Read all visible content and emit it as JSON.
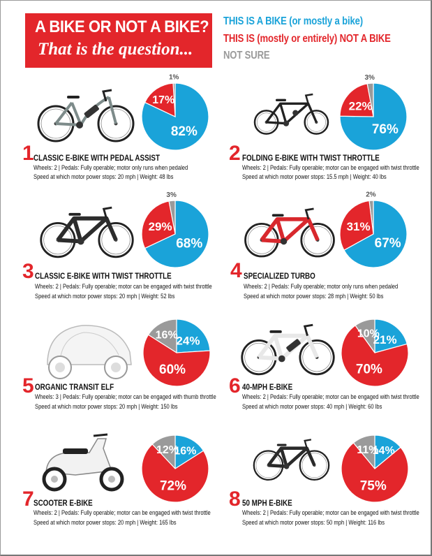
{
  "title": {
    "line1": "A BIKE OR NOT A BIKE?",
    "line2": "That is the question..."
  },
  "legend": [
    {
      "label": "THIS IS A BIKE (or mostly a bike)",
      "color": "#1aa3d9"
    },
    {
      "label": "THIS IS (mostly or entirely) NOT A BIKE",
      "color": "#e3262b"
    },
    {
      "label": "NOT SURE",
      "color": "#9a9a9a"
    }
  ],
  "colors": {
    "bike": "#1aa3d9",
    "not_bike": "#e3262b",
    "not_sure": "#9a9a9a"
  },
  "chart_data": [
    {
      "type": "pie",
      "number": "1",
      "name": "CLASSIC E-BIKE WITH PEDAL ASSIST",
      "desc1": "Wheels: 2 | Pedals: Fully operable; motor only runs when pedaled",
      "desc2": "Speed at which motor power stops: 20 mph | Weight: 48 lbs",
      "categories": [
        "Bike",
        "Not a bike",
        "Not sure"
      ],
      "values": [
        82,
        17,
        1
      ],
      "labels": [
        "82%",
        "17%",
        "1%"
      ]
    },
    {
      "type": "pie",
      "number": "2",
      "name": "FOLDING E-BIKE WITH TWIST THROTTLE",
      "desc1": "Wheels: 2 | Pedals: Fully operable; motor can be engaged with twist throttle",
      "desc2": "Speed at which motor power stops: 15.5 mph | Weight: 40 lbs",
      "categories": [
        "Bike",
        "Not a bike",
        "Not sure"
      ],
      "values": [
        76,
        22,
        3
      ],
      "labels": [
        "76%",
        "22%",
        "3%"
      ]
    },
    {
      "type": "pie",
      "number": "3",
      "name": "CLASSIC E-BIKE WITH TWIST THROTTLE",
      "desc1": "Wheels: 2 | Pedals: Fully operable; motor can be engaged with twist throttle",
      "desc2": "Speed at which motor power stops: 20 mph | Weight: 52 lbs",
      "categories": [
        "Bike",
        "Not a bike",
        "Not sure"
      ],
      "values": [
        68,
        29,
        3
      ],
      "labels": [
        "68%",
        "29%",
        "3%"
      ]
    },
    {
      "type": "pie",
      "number": "4",
      "name": "SPECIALIZED TURBO",
      "desc1": "Wheels: 2 | Pedals: Fully operable; motor only runs when pedaled",
      "desc2": "Speed at which motor power stops: 28 mph | Weight: 50 lbs",
      "categories": [
        "Bike",
        "Not a bike",
        "Not sure"
      ],
      "values": [
        67,
        31,
        2
      ],
      "labels": [
        "67%",
        "31%",
        "2%"
      ]
    },
    {
      "type": "pie",
      "number": "5",
      "name": "ORGANIC TRANSIT ELF",
      "desc1": "Wheels: 3 | Pedals: Fully operable; motor can be engaged with thumb throttle",
      "desc2": "Speed at which motor power stops: 20 mph | Weight: 150 lbs",
      "categories": [
        "Bike",
        "Not a bike",
        "Not sure"
      ],
      "values": [
        24,
        60,
        16
      ],
      "labels": [
        "24%",
        "60%",
        "16%"
      ]
    },
    {
      "type": "pie",
      "number": "6",
      "name": "40-MPH E-BIKE",
      "desc1": "Wheels: 2 | Pedals: Fully operable; motor can be engaged with twist throttle",
      "desc2": "Speed at which motor power stops: 40 mph | Weight: 60 lbs",
      "categories": [
        "Bike",
        "Not a bike",
        "Not sure"
      ],
      "values": [
        21,
        70,
        10
      ],
      "labels": [
        "21%",
        "70%",
        "10%"
      ]
    },
    {
      "type": "pie",
      "number": "7",
      "name": "SCOOTER E-BIKE",
      "desc1": "Wheels: 2 | Pedals: Fully operable; motor can be engaged with twist throttle",
      "desc2": "Speed at which motor power stops: 20 mph | Weight: 165 lbs",
      "categories": [
        "Bike",
        "Not a bike",
        "Not sure"
      ],
      "values": [
        16,
        72,
        12
      ],
      "labels": [
        "16%",
        "72%",
        "12%"
      ]
    },
    {
      "type": "pie",
      "number": "8",
      "name": "50 MPH E-BIKE",
      "desc1": "Wheels: 2 | Pedals: Fully operable; motor can be engaged with twist throttle",
      "desc2": "Speed at which motor power stops: 50 mph | Weight: 116 lbs",
      "categories": [
        "Bike",
        "Not a bike",
        "Not sure"
      ],
      "values": [
        14,
        75,
        11
      ],
      "labels": [
        "14%",
        "75%",
        "11%"
      ]
    }
  ]
}
